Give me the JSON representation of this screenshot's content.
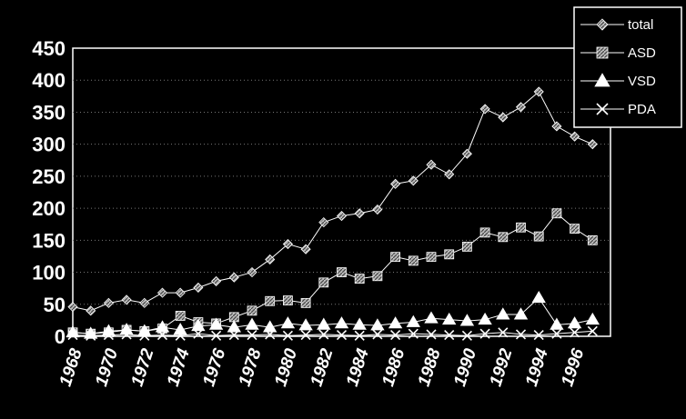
{
  "chart_data": {
    "type": "line",
    "title": "",
    "xlabel": "",
    "ylabel": "",
    "ylim": [
      0,
      450
    ],
    "yticks": [
      0,
      50,
      100,
      150,
      200,
      250,
      300,
      350,
      400,
      450
    ],
    "xlim": [
      1968,
      1998
    ],
    "xtick_labels": [
      "1968",
      "1970",
      "1972",
      "1974",
      "1976",
      "1978",
      "1980",
      "1982",
      "1984",
      "1986",
      "1988",
      "1990",
      "1992",
      "1994",
      "1996"
    ],
    "grid": "horizontal dotted",
    "legend_position": "top-right",
    "x": [
      1968,
      1969,
      1970,
      1971,
      1972,
      1973,
      1974,
      1975,
      1976,
      1977,
      1978,
      1979,
      1980,
      1981,
      1982,
      1983,
      1984,
      1985,
      1986,
      1987,
      1988,
      1989,
      1990,
      1991,
      1992,
      1993,
      1994,
      1995,
      1996,
      1997,
      1998
    ],
    "series": [
      {
        "name": "total",
        "marker": "diamond",
        "values": [
          46,
          40,
          52,
          57,
          52,
          68,
          68,
          76,
          86,
          92,
          100,
          120,
          144,
          136,
          178,
          188,
          192,
          198,
          238,
          243,
          268,
          253,
          285,
          355,
          342,
          358,
          382,
          328,
          312,
          300,
          null
        ]
      },
      {
        "name": "ASD",
        "marker": "square",
        "values": [
          6,
          4,
          6,
          10,
          8,
          12,
          32,
          22,
          20,
          30,
          40,
          55,
          56,
          52,
          84,
          100,
          90,
          94,
          124,
          118,
          124,
          128,
          140,
          162,
          155,
          170,
          156,
          192,
          168,
          150,
          null
        ]
      },
      {
        "name": "VSD",
        "marker": "triangle",
        "values": [
          6,
          4,
          8,
          10,
          8,
          14,
          10,
          16,
          18,
          14,
          18,
          14,
          20,
          17,
          18,
          20,
          18,
          17,
          20,
          22,
          28,
          26,
          24,
          26,
          34,
          34,
          60,
          18,
          20,
          26,
          null
        ]
      },
      {
        "name": "PDA",
        "marker": "x",
        "values": [
          2,
          1,
          2,
          3,
          1,
          2,
          1,
          4,
          1,
          2,
          2,
          3,
          1,
          2,
          3,
          2,
          1,
          3,
          2,
          4,
          3,
          2,
          1,
          4,
          6,
          3,
          2,
          4,
          6,
          8,
          null
        ]
      }
    ]
  }
}
